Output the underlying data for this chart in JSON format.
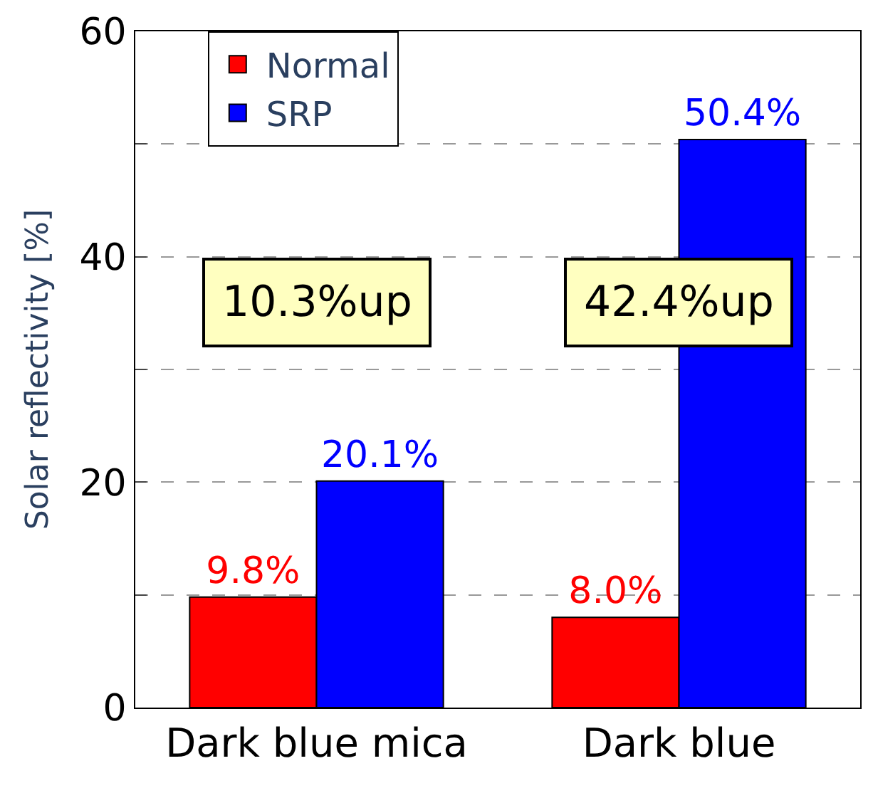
{
  "chart_data": {
    "type": "bar",
    "ylabel": "Solar reflectivity [%]",
    "categories": [
      "Dark blue mica",
      "Dark blue"
    ],
    "series": [
      {
        "name": "Normal",
        "color": "#ff0000",
        "values": [
          9.8,
          8.0
        ],
        "value_labels": [
          "9.8%",
          "8.0%"
        ]
      },
      {
        "name": "SRP",
        "color": "#0000ff",
        "values": [
          20.1,
          50.4
        ],
        "value_labels": [
          "20.1%",
          "50.4%"
        ]
      }
    ],
    "ylim": [
      0,
      60
    ],
    "yticks": [
      0,
      {
        "value": 10,
        "label": null
      },
      20,
      {
        "value": 30,
        "label": null
      },
      40,
      {
        "value": 50,
        "label": null
      },
      60
    ],
    "grid": "y",
    "line_style": "dashed",
    "legend": "top left",
    "annotations": [
      "10.3%up",
      "42.4%up"
    ]
  }
}
